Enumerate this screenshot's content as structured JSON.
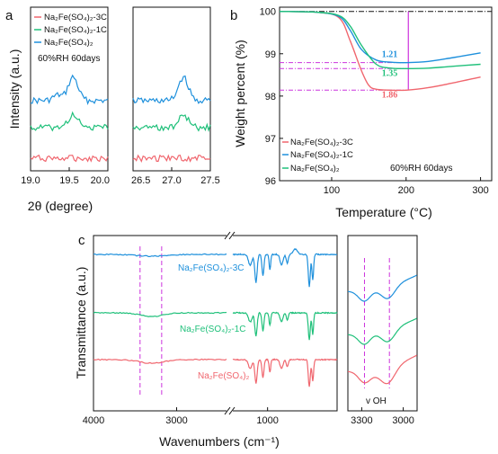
{
  "colors": {
    "C3": "#f0666e",
    "C1": "#1fc07a",
    "pure": "#1e90dc",
    "magenta": "#cc33dd",
    "black": "#111111"
  },
  "panel_a": {
    "letter": "a",
    "ylabel": "Intensity (a.u.)",
    "xlabel": "2θ (degree)",
    "legend": [
      {
        "key": "C3",
        "label": "Na₂Fe(SO₄)₂-3C"
      },
      {
        "key": "C1",
        "label": "Na₂Fe(SO₄)₂-1C"
      },
      {
        "key": "pure",
        "label": "Na₂Fe(SO₄)₂"
      }
    ],
    "condition": "60%RH  60days",
    "left_ticks": [
      "19.0",
      "19.5",
      "20.0"
    ],
    "right_ticks": [
      "26.5",
      "27.0",
      "27.5"
    ]
  },
  "panel_b": {
    "letter": "b",
    "ylabel": "Weight percent (%)",
    "xlabel": "Temperature (°C)",
    "legend": [
      {
        "key": "C3",
        "label": "Na₂Fe(SO₄)₂-3C"
      },
      {
        "key": "pure",
        "label": "Na₂Fe(SO₄)₂-1C"
      },
      {
        "key": "C1",
        "label": "Na₂Fe(SO₄)₂"
      }
    ],
    "condition": "60%RH  60days",
    "annotations": [
      {
        "text": "1.21",
        "key": "pure"
      },
      {
        "text": "1.35",
        "key": "C1"
      },
      {
        "text": "1.86",
        "key": "C3"
      }
    ]
  },
  "panel_c": {
    "letter": "c",
    "ylabel": "Transmittance (a.u.)",
    "xlabel": "Wavenumbers (cm⁻¹)",
    "labels": [
      {
        "text": "Na₂Fe(SO₄)₂-3C",
        "key": "pure"
      },
      {
        "text": "Na₂Fe(SO₄)₂-1C",
        "key": "C1"
      },
      {
        "text": "Na₂Fe(SO₄)₂",
        "key": "C3"
      }
    ],
    "inset_note": "v OH"
  },
  "chart_data": [
    {
      "type": "line",
      "panel": "a",
      "xlabel": "2θ (degree)",
      "ylabel": "Intensity (a.u.)",
      "segments": [
        {
          "xlim": [
            19.0,
            20.0
          ],
          "ticks": [
            19.0,
            19.5,
            20.0
          ]
        },
        {
          "xlim": [
            26.5,
            27.5
          ],
          "ticks": [
            26.5,
            27.0,
            27.5
          ]
        }
      ],
      "series": [
        {
          "name": "Na₂Fe(SO₄)₂",
          "key": "pure",
          "offset": 2.0,
          "peaks": [
            19.55,
            27.15
          ]
        },
        {
          "name": "Na₂Fe(SO₄)₂-1C",
          "key": "C1",
          "offset": 1.0,
          "peaks": [
            19.55,
            27.15
          ]
        },
        {
          "name": "Na₂Fe(SO₄)₂-3C",
          "key": "C3",
          "offset": 0.0,
          "peaks": []
        }
      ]
    },
    {
      "type": "line",
      "panel": "b",
      "xlabel": "Temperature (°C)",
      "ylabel": "Weight percent (%)",
      "xlim": [
        30,
        315
      ],
      "ylim": [
        96,
        100.1
      ],
      "xticks": [
        100,
        200,
        300
      ],
      "yticks": [
        96,
        97,
        98,
        99,
        100
      ],
      "series": [
        {
          "name": "Na₂Fe(SO₄)₂-3C",
          "key": "C3",
          "x": [
            30,
            80,
            110,
            125,
            140,
            150,
            160,
            180,
            200,
            230,
            260,
            300
          ],
          "y": [
            100,
            99.98,
            99.85,
            99.3,
            98.6,
            98.25,
            98.16,
            98.14,
            98.14,
            98.2,
            98.3,
            98.45
          ]
        },
        {
          "name": "Na₂Fe(SO₄)₂-1C",
          "key": "pure",
          "x": [
            30,
            80,
            110,
            125,
            140,
            160,
            180,
            200,
            230,
            260,
            300
          ],
          "y": [
            100,
            99.98,
            99.88,
            99.55,
            99.1,
            98.85,
            98.8,
            98.79,
            98.82,
            98.9,
            99.02
          ]
        },
        {
          "name": "Na₂Fe(SO₄)₂",
          "key": "C1",
          "x": [
            30,
            80,
            110,
            125,
            140,
            160,
            180,
            200,
            230,
            260,
            300
          ],
          "y": [
            100,
            99.98,
            99.9,
            99.65,
            99.2,
            98.75,
            98.66,
            98.65,
            98.66,
            98.7,
            98.75
          ]
        }
      ],
      "reference_line_y": 100
    },
    {
      "type": "line",
      "panel": "c",
      "xlabel": "Wavenumbers (cm⁻¹)",
      "ylabel": "Transmittance (a.u.)",
      "main_xlim": [
        4000,
        400
      ],
      "main_xticks": [
        4000,
        3000,
        1000
      ],
      "inset_xlim": [
        3400,
        2900
      ],
      "inset_xticks": [
        3300,
        3000
      ],
      "dashed_lines_main": [
        3440,
        3180
      ],
      "dashed_lines_inset": [
        3280,
        3100
      ],
      "series": [
        {
          "name": "Na₂Fe(SO₄)₂-3C",
          "key": "pure",
          "offset": 2
        },
        {
          "name": "Na₂Fe(SO₄)₂-1C",
          "key": "C1",
          "offset": 1
        },
        {
          "name": "Na₂Fe(SO₄)₂",
          "key": "C3",
          "offset": 0
        }
      ]
    }
  ]
}
